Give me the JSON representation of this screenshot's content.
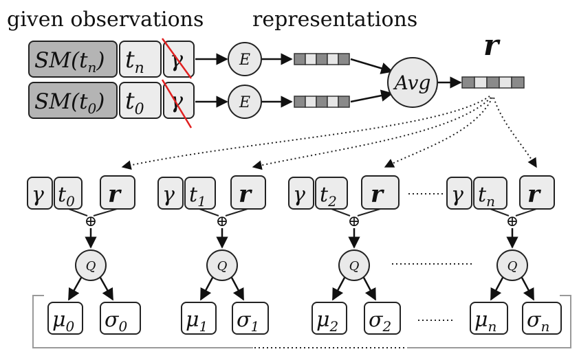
{
  "headings": {
    "given": "given observations",
    "representations": "representations",
    "r_symbol": "r"
  },
  "observations": [
    {
      "sm": "SM(t",
      "sm_sub": "n",
      "sm_close": ")",
      "t": "t",
      "t_sub": "n",
      "gamma": "γ",
      "encoder": "E"
    },
    {
      "sm": "SM(t",
      "sm_sub": "0",
      "sm_close": ")",
      "t": "t",
      "t_sub": "0",
      "gamma": "γ",
      "encoder": "E"
    }
  ],
  "avg_label": "Avg",
  "decoders": [
    {
      "gamma": "γ",
      "t": "t",
      "t_sub": "0",
      "r": "r",
      "oplus": "⊕",
      "q": "Q",
      "mu": "μ",
      "mu_sub": "0",
      "sigma": "σ",
      "sigma_sub": "0"
    },
    {
      "gamma": "γ",
      "t": "t",
      "t_sub": "1",
      "r": "r",
      "oplus": "⊕",
      "q": "Q",
      "mu": "μ",
      "mu_sub": "1",
      "sigma": "σ",
      "sigma_sub": "1"
    },
    {
      "gamma": "γ",
      "t": "t",
      "t_sub": "2",
      "r": "r",
      "oplus": "⊕",
      "q": "Q",
      "mu": "μ",
      "mu_sub": "2",
      "sigma": "σ",
      "sigma_sub": "2"
    },
    {
      "gamma": "γ",
      "t": "t",
      "t_sub": "n",
      "r": "r",
      "oplus": "⊕",
      "q": "Q",
      "mu": "μ",
      "mu_sub": "n",
      "sigma": "σ",
      "sigma_sub": "n"
    }
  ],
  "colors": {
    "strike": "#e02020",
    "dark_cell": "#8a8a8a",
    "light_cell": "#e6e6e6"
  }
}
